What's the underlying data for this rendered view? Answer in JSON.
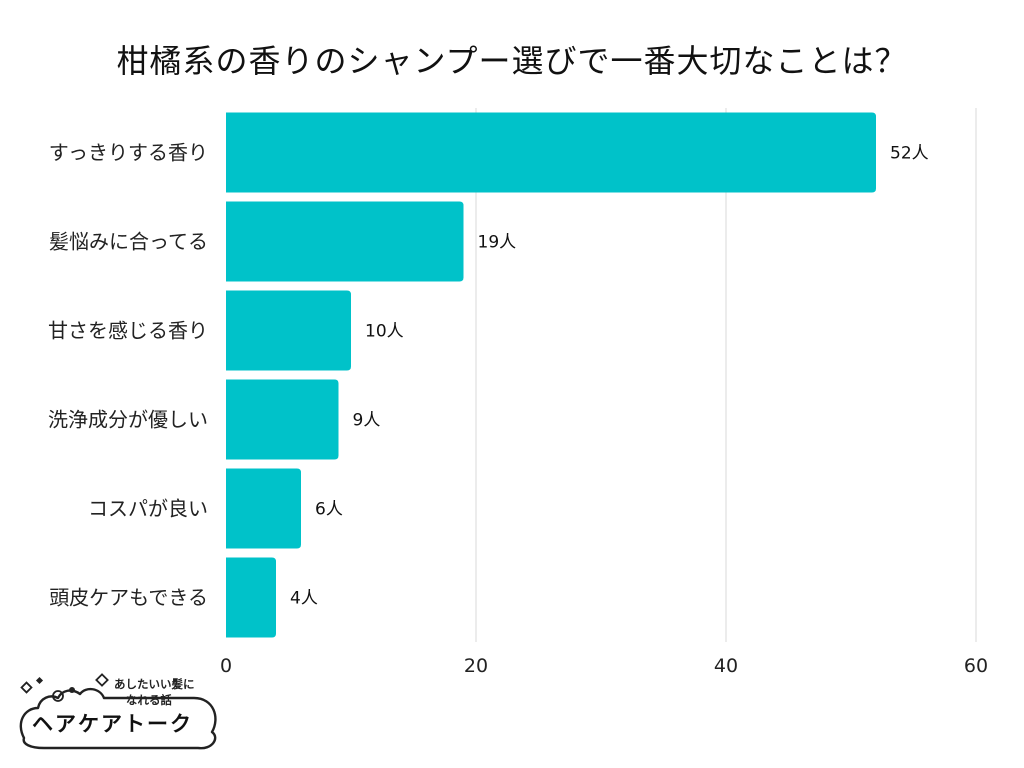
{
  "chart_data": {
    "type": "bar",
    "orientation": "horizontal",
    "title": "柑橘系の香りのシャンプー選びで一番大切なことは？",
    "categories": [
      "すっきりする香り",
      "髪悩みに合ってる",
      "甘さを感じる香り",
      "洗浄成分が優しい",
      "コスパが良い",
      "頭皮ケアもできる"
    ],
    "values": [
      52,
      19,
      10,
      9,
      6,
      4
    ],
    "value_labels": [
      "52人",
      "19人",
      "10人",
      "9人",
      "6人",
      "4人"
    ],
    "xlim": [
      0,
      60
    ],
    "xticks": [
      "0",
      "20",
      "40",
      "60"
    ],
    "grid": true,
    "bar_color": "#00C2C9"
  },
  "logo": {
    "tagline_line1": "あしたいい髪に",
    "tagline_line2": "なれる話",
    "name": "ヘアケアトーク"
  }
}
